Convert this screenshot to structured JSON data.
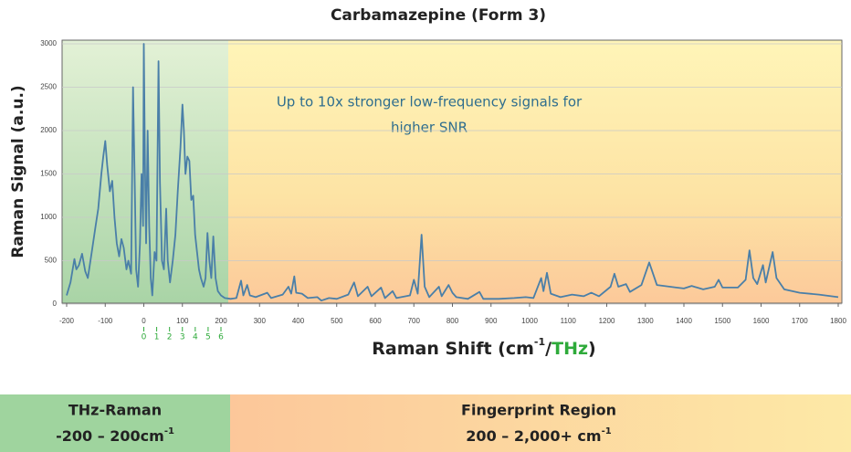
{
  "chart_data": {
    "type": "line",
    "title": "Carbamazepine (Form 3)",
    "ylabel": "Raman Signal (a.u.)",
    "xlabel_parts": [
      "Raman Shift (cm",
      "-1",
      "/",
      "THz",
      ")"
    ],
    "annotation": [
      "Up to 10x stronger low-frequency signals for",
      "higher SNR"
    ],
    "x": [
      -200,
      -190,
      -180,
      -175,
      -168,
      -160,
      -152,
      -145,
      -135,
      -125,
      -118,
      -110,
      -105,
      -100,
      -95,
      -88,
      -82,
      -76,
      -70,
      -64,
      -58,
      -52,
      -45,
      -40,
      -33,
      -28,
      -24,
      -20,
      -15,
      -10,
      -6,
      -2,
      0,
      3,
      6,
      10,
      14,
      18,
      22,
      28,
      33,
      38,
      42,
      47,
      52,
      58,
      62,
      68,
      75,
      82,
      88,
      95,
      100,
      104,
      108,
      113,
      118,
      123,
      128,
      133,
      138,
      143,
      148,
      155,
      160,
      165,
      170,
      175,
      180,
      186,
      192,
      200,
      210,
      225,
      240,
      252,
      258,
      268,
      275,
      290,
      320,
      330,
      360,
      375,
      382,
      390,
      395,
      410,
      425,
      450,
      460,
      480,
      500,
      530,
      545,
      555,
      580,
      590,
      615,
      625,
      645,
      655,
      690,
      700,
      710,
      720,
      728,
      740,
      765,
      772,
      790,
      800,
      810,
      840,
      870,
      880,
      920,
      960,
      990,
      1010,
      1030,
      1036,
      1045,
      1055,
      1080,
      1110,
      1140,
      1160,
      1180,
      1210,
      1220,
      1230,
      1250,
      1260,
      1290,
      1310,
      1330,
      1380,
      1400,
      1420,
      1450,
      1480,
      1490,
      1500,
      1540,
      1560,
      1570,
      1580,
      1590,
      1605,
      1612,
      1630,
      1640,
      1660,
      1700,
      1750,
      1800
    ],
    "series": [
      {
        "color": "#4a7fa8",
        "values": [
          100,
          250,
          520,
          400,
          450,
          580,
          380,
          300,
          600,
          900,
          1100,
          1500,
          1700,
          1880,
          1600,
          1300,
          1420,
          1000,
          700,
          550,
          750,
          650,
          400,
          500,
          350,
          2500,
          1500,
          400,
          200,
          700,
          1500,
          900,
          3000,
          1600,
          700,
          2000,
          900,
          300,
          100,
          600,
          500,
          2800,
          1400,
          500,
          400,
          1100,
          500,
          250,
          500,
          800,
          1300,
          1800,
          2300,
          2000,
          1500,
          1700,
          1650,
          1200,
          1250,
          800,
          600,
          400,
          300,
          200,
          300,
          820,
          500,
          300,
          780,
          300,
          150,
          100,
          70,
          60,
          70,
          270,
          100,
          220,
          100,
          80,
          130,
          70,
          110,
          200,
          120,
          320,
          130,
          120,
          70,
          80,
          40,
          70,
          60,
          110,
          250,
          90,
          200,
          90,
          190,
          70,
          150,
          70,
          100,
          280,
          120,
          800,
          200,
          80,
          200,
          90,
          220,
          130,
          80,
          60,
          140,
          60,
          60,
          70,
          80,
          70,
          300,
          150,
          360,
          120,
          80,
          110,
          90,
          130,
          90,
          200,
          350,
          200,
          230,
          140,
          220,
          480,
          220,
          190,
          180,
          210,
          170,
          200,
          280,
          190,
          190,
          280,
          620,
          300,
          230,
          450,
          250,
          600,
          300,
          170,
          130,
          110,
          80
        ]
      }
    ],
    "xlim": [
      -200,
      1800
    ],
    "ylim": [
      0,
      3000
    ],
    "xticks": [
      -200,
      -100,
      0,
      100,
      200,
      300,
      400,
      500,
      600,
      700,
      800,
      900,
      1000,
      1100,
      1200,
      1300,
      1400,
      1500,
      1600,
      1700,
      1800
    ],
    "yticks": [
      0,
      500,
      1000,
      1500,
      2000,
      2500,
      3000
    ],
    "grid": true,
    "x2lim": [
      -6,
      54
    ],
    "x2ticks": [
      0,
      1,
      2,
      3,
      4,
      5,
      6
    ],
    "x2color": "#2eaa3a"
  },
  "regions": [
    {
      "name": "THz-Raman",
      "range": "-200 – 200cm",
      "sup": "-1"
    },
    {
      "name": "Fingerprint Region",
      "range": "200 – 2,000+ cm",
      "sup": "-1"
    }
  ]
}
